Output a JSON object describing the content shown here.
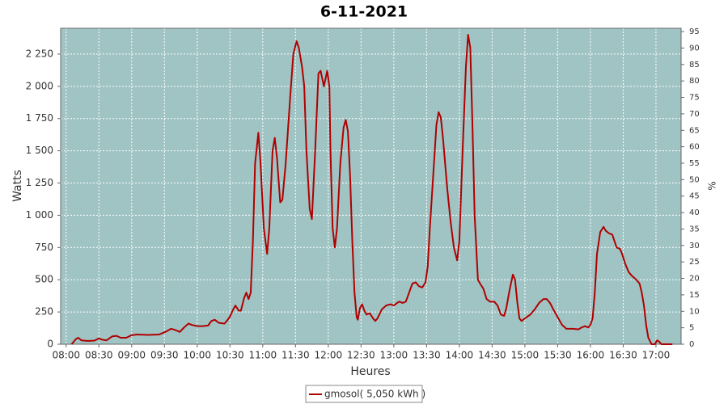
{
  "chart_data": {
    "type": "line",
    "title": "6-11-2021",
    "x_label": "Heures",
    "y_label": "Watts",
    "y2_label": "%",
    "x": [
      "08:05",
      "08:09",
      "08:11",
      "08:14",
      "08:20",
      "08:26",
      "08:30",
      "08:33",
      "08:37",
      "08:42",
      "08:46",
      "08:50",
      "08:55",
      "09:00",
      "09:05",
      "09:15",
      "09:25",
      "09:32",
      "09:36",
      "09:40",
      "09:44",
      "09:48",
      "09:52",
      "09:55",
      "10:00",
      "10:05",
      "10:10",
      "10:13",
      "10:16",
      "10:20",
      "10:25",
      "10:28",
      "10:30",
      "10:33",
      "10:35",
      "10:38",
      "10:40",
      "10:43",
      "10:45",
      "10:47",
      "10:49",
      "10:51",
      "10:53",
      "10:56",
      "10:58",
      "11:01",
      "11:04",
      "11:06",
      "11:09",
      "11:11",
      "11:13",
      "11:16",
      "11:18",
      "11:21",
      "11:25",
      "11:28",
      "11:31",
      "11:33",
      "11:36",
      "11:38",
      "11:40",
      "11:43",
      "11:45",
      "11:48",
      "11:51",
      "11:53",
      "11:56",
      "11:59",
      "12:01",
      "12:02",
      "12:04",
      "12:06",
      "12:08",
      "12:11",
      "12:14",
      "12:16",
      "12:18",
      "12:20",
      "12:22",
      "12:24",
      "12:26",
      "12:27",
      "12:29",
      "12:31",
      "12:33",
      "12:35",
      "12:38",
      "12:41",
      "12:43",
      "12:45",
      "12:49",
      "12:53",
      "12:57",
      "13:00",
      "13:03",
      "13:05",
      "13:08",
      "13:11",
      "13:14",
      "13:17",
      "13:20",
      "13:23",
      "13:26",
      "13:29",
      "13:31",
      "13:33",
      "13:36",
      "13:39",
      "13:41",
      "13:43",
      "13:45",
      "13:47",
      "13:49",
      "13:52",
      "13:55",
      "13:58",
      "14:00",
      "14:03",
      "14:06",
      "14:08",
      "14:10",
      "14:12",
      "14:14",
      "14:17",
      "14:19",
      "14:22",
      "14:25",
      "14:28",
      "14:32",
      "14:35",
      "14:38",
      "14:41",
      "14:43",
      "14:46",
      "14:49",
      "14:51",
      "14:53",
      "14:55",
      "14:57",
      "15:00",
      "15:05",
      "15:09",
      "15:13",
      "15:17",
      "15:20",
      "15:23",
      "15:26",
      "15:30",
      "15:34",
      "15:38",
      "15:44",
      "15:49",
      "15:52",
      "15:55",
      "15:58",
      "16:00",
      "16:02",
      "16:04",
      "16:06",
      "16:09",
      "16:12",
      "16:14",
      "16:17",
      "16:20",
      "16:22",
      "16:24",
      "16:27",
      "16:29",
      "16:32",
      "16:35",
      "16:38",
      "16:42",
      "16:45",
      "16:47",
      "16:49",
      "16:51",
      "16:53",
      "16:56",
      "16:59",
      "17:01",
      "17:03",
      "17:05",
      "17:15"
    ],
    "series": [
      {
        "name": "gmosol( 5,050 kWh )",
        "color": "#b00000",
        "values": [
          0,
          40,
          50,
          30,
          25,
          28,
          45,
          35,
          30,
          60,
          65,
          50,
          50,
          70,
          75,
          72,
          75,
          100,
          120,
          110,
          95,
          130,
          160,
          150,
          140,
          140,
          145,
          180,
          190,
          165,
          160,
          190,
          215,
          270,
          300,
          260,
          260,
          360,
          400,
          350,
          400,
          800,
          1400,
          1640,
          1400,
          900,
          700,
          900,
          1500,
          1600,
          1450,
          1100,
          1120,
          1400,
          1900,
          2250,
          2350,
          2300,
          2150,
          2000,
          1500,
          1050,
          970,
          1500,
          2100,
          2120,
          2000,
          2120,
          2000,
          1500,
          900,
          750,
          900,
          1400,
          1680,
          1740,
          1650,
          1300,
          800,
          400,
          210,
          190,
          280,
          310,
          260,
          230,
          240,
          200,
          180,
          200,
          270,
          300,
          310,
          300,
          320,
          330,
          320,
          330,
          400,
          470,
          480,
          450,
          440,
          480,
          600,
          900,
          1300,
          1700,
          1800,
          1760,
          1600,
          1400,
          1200,
          950,
          750,
          650,
          800,
          1500,
          2150,
          2400,
          2300,
          1700,
          1000,
          500,
          470,
          430,
          350,
          330,
          330,
          300,
          230,
          220,
          280,
          420,
          540,
          500,
          330,
          200,
          180,
          200,
          230,
          270,
          320,
          350,
          350,
          320,
          270,
          210,
          150,
          120,
          120,
          115,
          130,
          140,
          130,
          150,
          200,
          400,
          700,
          870,
          910,
          880,
          860,
          850,
          800,
          750,
          740,
          700,
          620,
          560,
          530,
          500,
          470,
          400,
          300,
          150,
          50,
          0,
          0,
          30,
          20,
          0,
          0
        ]
      }
    ],
    "xlim": [
      "07:55",
      "17:23"
    ],
    "xticks": [
      "08:00",
      "08:30",
      "09:00",
      "09:30",
      "10:00",
      "10:30",
      "11:00",
      "11:30",
      "12:00",
      "12:30",
      "13:00",
      "13:30",
      "14:00",
      "14:30",
      "15:00",
      "15:30",
      "16:00",
      "16:30",
      "17:00"
    ],
    "ylim": [
      0,
      2450
    ],
    "yticks": [
      0,
      250,
      500,
      750,
      {
        "value": 1000,
        "label": "1 000"
      },
      {
        "value": 1250,
        "label": "1 250"
      },
      {
        "value": 1500,
        "label": "1 500"
      },
      {
        "value": 1750,
        "label": "1 750"
      },
      {
        "value": 2000,
        "label": "2 000"
      },
      {
        "value": 2250,
        "label": "2 250"
      }
    ],
    "y2lim": [
      0,
      96
    ],
    "y2ticks": [
      0,
      5,
      10,
      15,
      20,
      25,
      30,
      35,
      40,
      45,
      50,
      55,
      60,
      65,
      70,
      75,
      80,
      85,
      90,
      95
    ],
    "grid": true,
    "legend": "bottom"
  }
}
